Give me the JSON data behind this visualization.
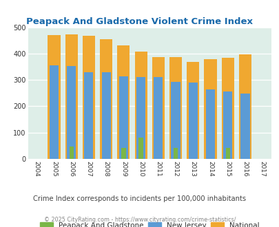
{
  "title": "Peapack And Gladstone Violent Crime Index",
  "years": [
    2004,
    2005,
    2006,
    2007,
    2008,
    2009,
    2010,
    2011,
    2012,
    2013,
    2014,
    2015,
    2016,
    2017
  ],
  "peapack": [
    0,
    0,
    47,
    0,
    0,
    43,
    80,
    0,
    43,
    0,
    0,
    43,
    0,
    0
  ],
  "nj": [
    0,
    355,
    353,
    330,
    330,
    313,
    310,
    310,
    293,
    290,
    263,
    257,
    247,
    0
  ],
  "national": [
    0,
    469,
    474,
    467,
    455,
    432,
    407,
    387,
    387,
    368,
    378,
    384,
    398,
    0
  ],
  "peapack_color": "#7ab648",
  "nj_color": "#5b9bd5",
  "national_color": "#f0a830",
  "bg_color": "#deeee8",
  "ylim": [
    0,
    500
  ],
  "yticks": [
    0,
    100,
    200,
    300,
    400,
    500
  ],
  "subtitle": "Crime Index corresponds to incidents per 100,000 inhabitants",
  "footer": "© 2025 CityRating.com - https://www.cityrating.com/crime-statistics/",
  "title_color": "#1a6aab",
  "subtitle_color": "#444444",
  "footer_color": "#888888",
  "legend_labels": [
    "Peapack And Gladstone",
    "New Jersey",
    "National"
  ]
}
